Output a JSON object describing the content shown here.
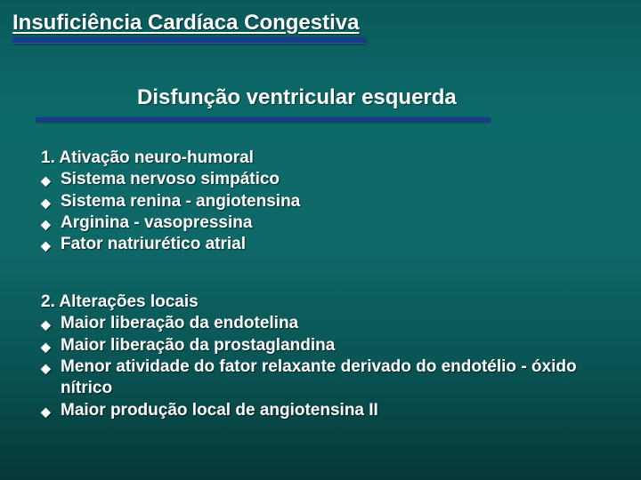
{
  "colors": {
    "text": "#ffffff",
    "bar": "#1a3b8c",
    "bg_gradient": [
      "#0a5a5a",
      "#0d6a6a",
      "#0f6868",
      "#0a5555",
      "#063838"
    ]
  },
  "title": "Insuficiência Cardíaca Congestiva",
  "subtitle": "Disfunção ventricular esquerda",
  "typography": {
    "title_fontsize": 24,
    "subtitle_fontsize": 24,
    "body_fontsize": 19,
    "font_family": "Arial",
    "font_weight": "bold"
  },
  "bullet_glyph": "◆",
  "sections": [
    {
      "heading": "1. Ativação neuro-humoral",
      "items": [
        "Sistema nervoso simpático",
        "Sistema renina - angiotensina",
        "Arginina - vasopressina",
        "Fator natriurético atrial"
      ]
    },
    {
      "heading": "2. Alterações locais",
      "items": [
        "Maior liberação da endotelina",
        "Maior liberação da prostaglandina",
        "Menor atividade do fator relaxante derivado do endotélio - óxido nítrico",
        "Maior produção local de angiotensina II"
      ]
    }
  ]
}
